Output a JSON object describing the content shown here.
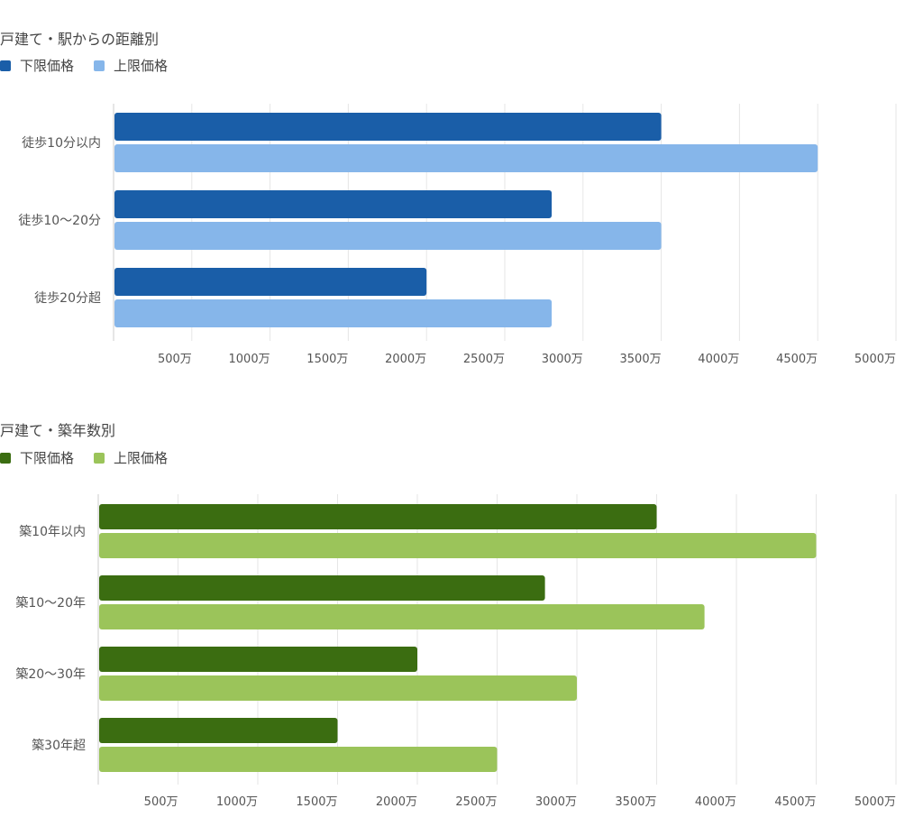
{
  "colors": {
    "chart1_lower": "#1a5ea8",
    "chart1_upper": "#86b6ea",
    "chart2_lower": "#3b6d11",
    "chart2_upper": "#9bc45a",
    "grid": "#e6e6e6",
    "axis": "#cccccc"
  },
  "chart_data": [
    {
      "type": "bar",
      "orientation": "horizontal",
      "title": "戸建て・駅からの距離別",
      "categories": [
        "徒歩10分以内",
        "徒歩10〜20分",
        "徒歩20分超"
      ],
      "series": [
        {
          "name": "下限価格",
          "values": [
            3500,
            2800,
            2000
          ]
        },
        {
          "name": "上限価格",
          "values": [
            4500,
            3500,
            2800
          ]
        }
      ],
      "ticks": [
        500,
        1000,
        1500,
        2000,
        2500,
        3000,
        3500,
        4000,
        4500,
        5000
      ],
      "tick_suffix": "万",
      "xlim": [
        0,
        5000
      ],
      "legend": "top-left",
      "grid": true
    },
    {
      "type": "bar",
      "orientation": "horizontal",
      "title": "戸建て・築年数別",
      "categories": [
        "築10年以内",
        "築10〜20年",
        "築20〜30年",
        "築30年超"
      ],
      "series": [
        {
          "name": "下限価格",
          "values": [
            3500,
            2800,
            2000,
            1500
          ]
        },
        {
          "name": "上限価格",
          "values": [
            4500,
            3800,
            3000,
            2500
          ]
        }
      ],
      "ticks": [
        500,
        1000,
        1500,
        2000,
        2500,
        3000,
        3500,
        4000,
        4500,
        5000
      ],
      "tick_suffix": "万",
      "xlim": [
        0,
        5000
      ],
      "legend": "top-left",
      "grid": true
    }
  ]
}
